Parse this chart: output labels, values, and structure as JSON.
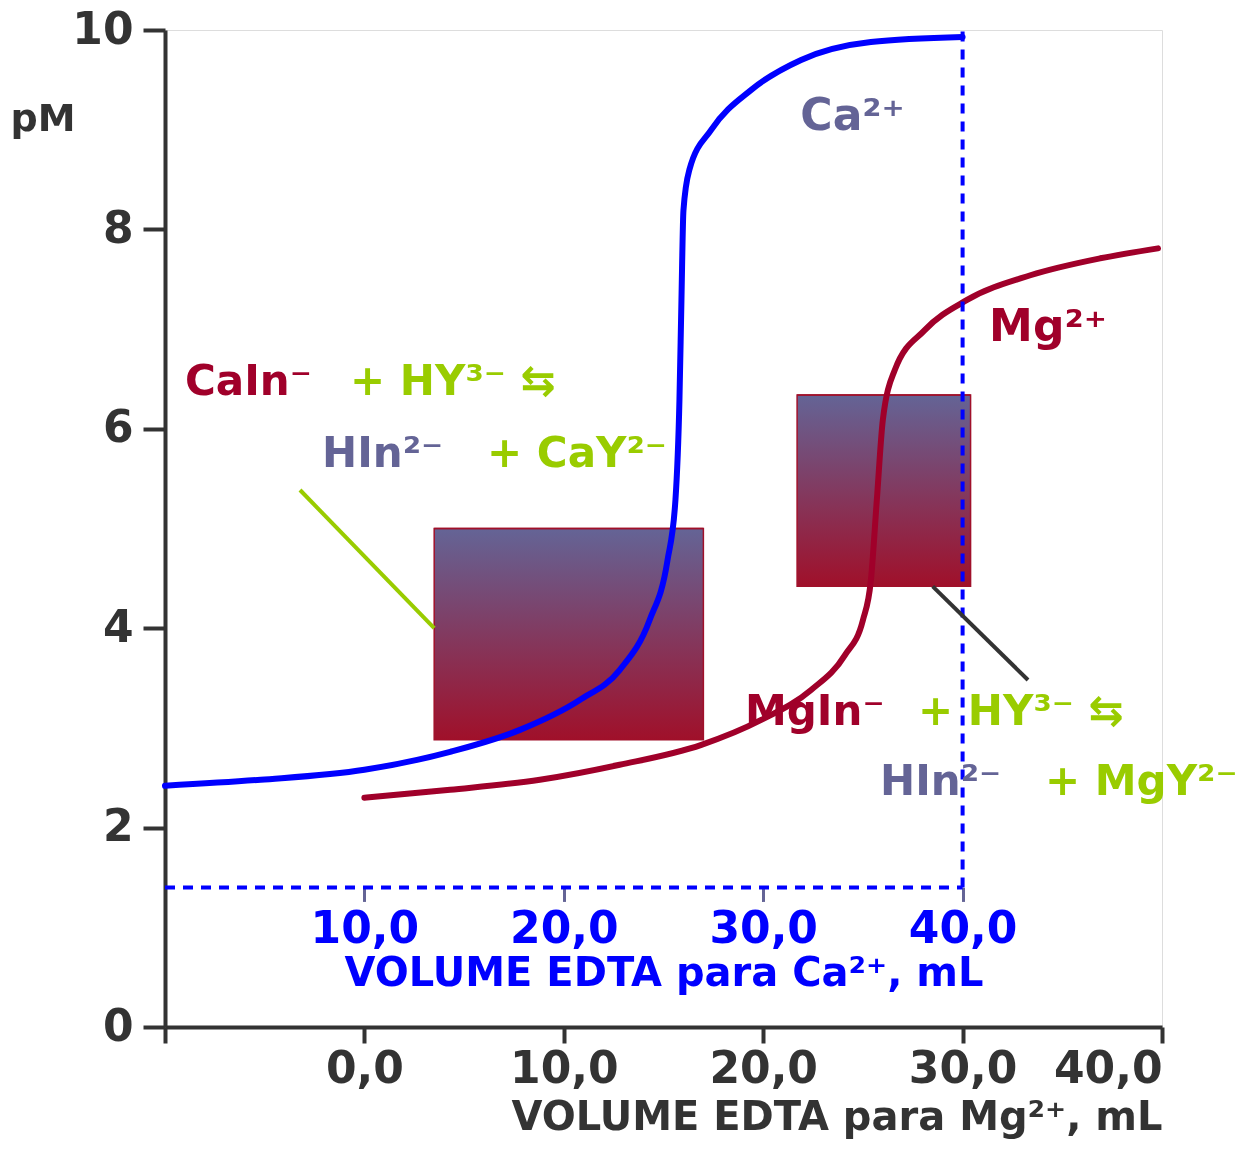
{
  "chart_data": {
    "type": "line",
    "xlabel": "VOLUME EDTA para Mg²⁺, mL",
    "x2label": "VOLUME EDTA para Ca²⁺, mL",
    "ylabel": "pM",
    "xlim": [
      -10,
      40
    ],
    "xticks": [
      {
        "value": -10,
        "label": null
      },
      {
        "value": 0,
        "label": "0,0"
      },
      {
        "value": 10,
        "label": "10,0"
      },
      {
        "value": 20,
        "label": "20,0"
      },
      {
        "value": 30,
        "label": "30,0"
      },
      {
        "value": 40,
        "label": "40,0"
      }
    ],
    "x2lim": [
      0,
      50
    ],
    "x2ticks": [
      {
        "value": 10,
        "label": "10,0"
      },
      {
        "value": 20,
        "label": "20,0"
      },
      {
        "value": 30,
        "label": "30,0"
      },
      {
        "value": 40,
        "label": "40,0"
      }
    ],
    "ylim": [
      0,
      10
    ],
    "yticks": [
      0,
      2,
      4,
      6,
      8,
      10
    ],
    "grid": false,
    "legend": false,
    "marker": "none",
    "line_style": "solid",
    "series": [
      {
        "name": "Ca²⁺",
        "color": "#0000ff",
        "axis": "x2",
        "x": [
          0,
          4.8,
          10,
          14.3,
          17.8,
          20.8,
          22.8,
          24.3,
          25.2,
          25.6,
          25.8,
          25.9,
          26.0,
          26.3,
          27.4,
          29.4,
          31.9,
          35.4,
          40
        ],
        "values": [
          2.42,
          2.48,
          2.58,
          2.76,
          2.98,
          3.28,
          3.58,
          4.08,
          4.68,
          5.29,
          6.29,
          7.29,
          8.19,
          8.6,
          9.0,
          9.4,
          9.7,
          9.88,
          9.93
        ]
      },
      {
        "name": "Mg²⁺",
        "color": "#a0002a",
        "x": [
          0,
          4.3,
          8.8,
          12.8,
          16.9,
          19.9,
          22.4,
          24.1,
          25.0,
          25.4,
          25.7,
          26.0,
          26.6,
          28.1,
          30.2,
          33.4,
          36.9,
          39.8
        ],
        "values": [
          2.3,
          2.38,
          2.48,
          2.63,
          2.83,
          3.08,
          3.38,
          3.73,
          4.08,
          4.48,
          5.29,
          6.09,
          6.59,
          6.99,
          7.29,
          7.54,
          7.71,
          7.81
        ]
      },
      {
        "type": "bar",
        "color": "#a0102a",
        "x": [
          10.25,
          26.05
        ],
        "base": [
          2.88,
          4.42
        ],
        "values": [
          2.12,
          1.92
        ],
        "xerrors": [
          6.75,
          4.35
        ]
      }
    ],
    "ref_lines": [
      {
        "axis": "y",
        "value": 1.4,
        "color": "#0000ff",
        "line_style": "dashed"
      },
      {
        "axis": "x",
        "value": 30,
        "color": "#0000ff",
        "line_style": "dashed"
      }
    ],
    "annotations": [
      "CaIn⁻ + HY³⁻ ⇆",
      {
        "text": "HIn²⁻ + CaY²⁻",
        "x": 3.5,
        "y": 4.0
      },
      {
        "text": "MgIn⁻ + HY³⁻ ⇆",
        "x": 28.5,
        "y": 4.42
      },
      "HIn²⁻ + MgY²⁻"
    ]
  }
}
